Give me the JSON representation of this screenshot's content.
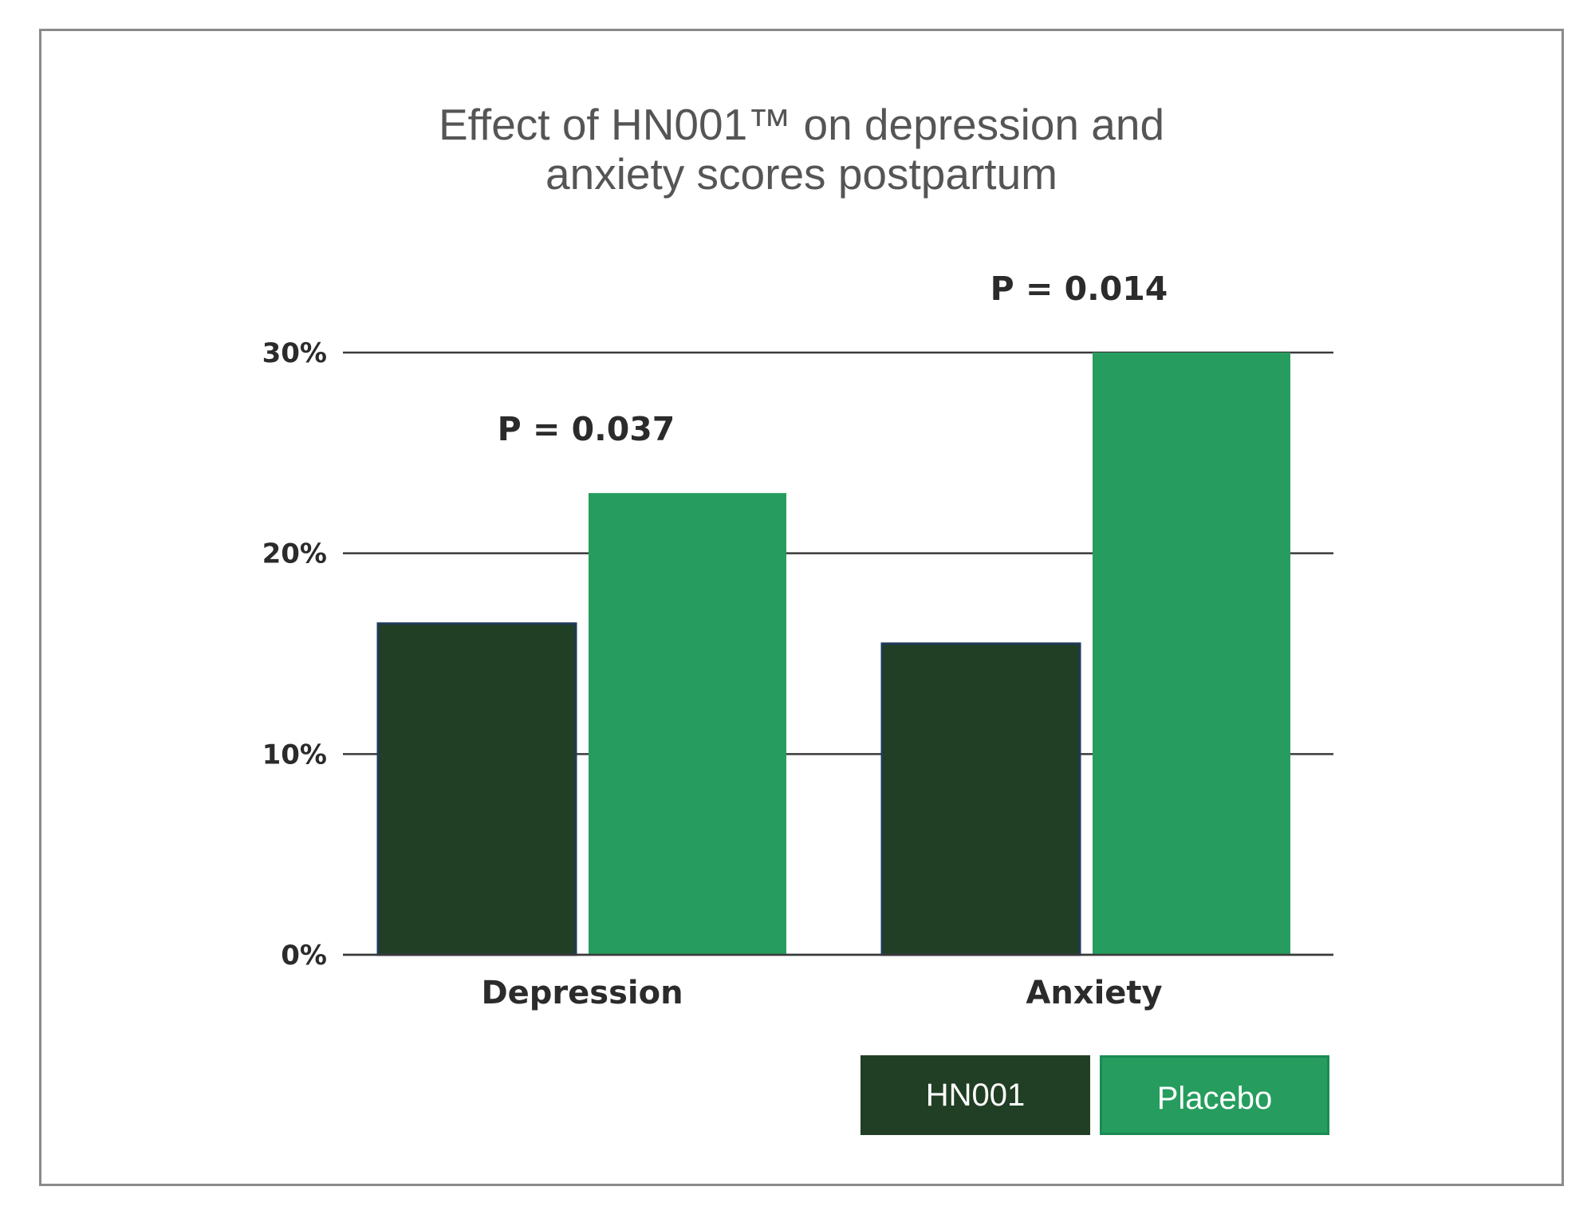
{
  "chart_data": {
    "type": "bar",
    "title": [
      "Effect of HN001™ on depression and",
      "anxiety scores postpartum"
    ],
    "categories": [
      "Depression",
      "Anxiety"
    ],
    "series": [
      {
        "name": "HN001",
        "values": [
          16.5,
          15.5
        ],
        "color": "#213f24"
      },
      {
        "name": "Placebo",
        "values": [
          23.0,
          30.0
        ],
        "color": "#269d5e"
      }
    ],
    "ylim": [
      0,
      30
    ],
    "yticks": [
      {
        "value": 0,
        "label": "0%"
      },
      {
        "value": 10,
        "label": "10%"
      },
      {
        "value": 20,
        "label": "20%"
      },
      {
        "value": 30,
        "label": "30%"
      }
    ],
    "annotations": [
      {
        "category": "Depression",
        "text": "P = 0.037"
      },
      {
        "category": "Anxiety",
        "text": "P = 0.014"
      }
    ],
    "grid": true,
    "legend_position": "bottom-right",
    "colors": {
      "gridline": "#3a3a3a",
      "frame": "#8a8a8a",
      "title": "#555555"
    }
  }
}
